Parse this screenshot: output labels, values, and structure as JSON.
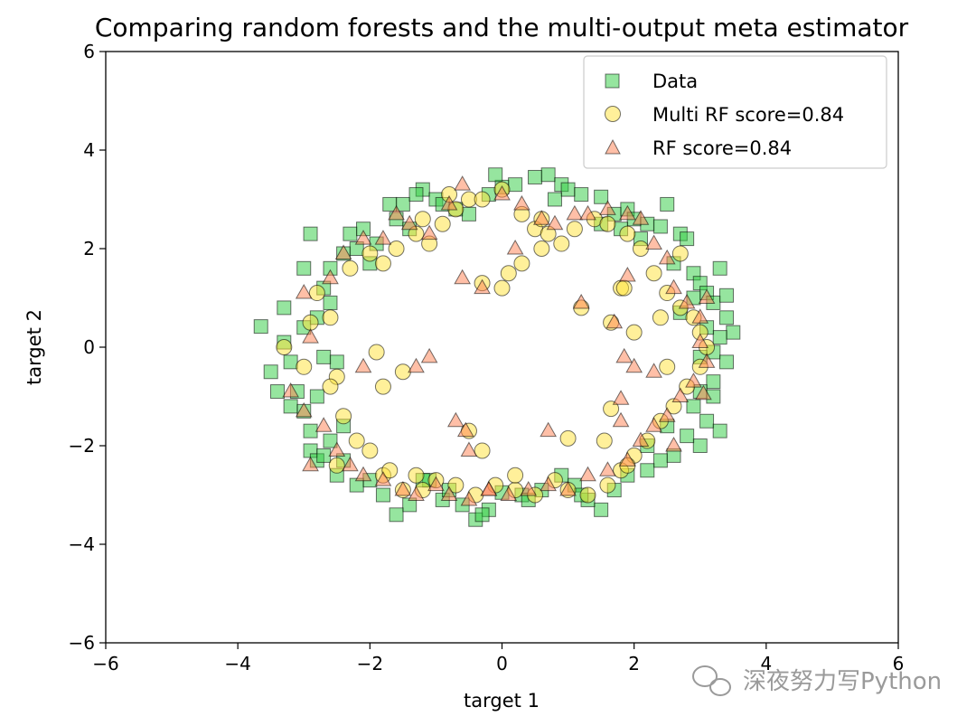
{
  "chart_data": {
    "type": "scatter",
    "title": "Comparing random forests and the multi-output meta estimator",
    "xlabel": "target 1",
    "ylabel": "target 2",
    "xlim": [
      -6,
      6
    ],
    "ylim": [
      -6,
      6
    ],
    "xticks": [
      "−6",
      "−4",
      "−2",
      "0",
      "2",
      "4",
      "6"
    ],
    "yticks": [
      "−6",
      "−4",
      "−2",
      "0",
      "2",
      "4",
      "6"
    ],
    "grid": false,
    "legend_position": "top-right",
    "series": [
      {
        "name": "Data",
        "marker": "square",
        "color": "#2ecc40",
        "points": [
          [
            -3.65,
            0.42
          ],
          [
            -3.5,
            -0.5
          ],
          [
            -3.3,
            0.1
          ],
          [
            -3.2,
            -0.3
          ],
          [
            -3.1,
            -0.9
          ],
          [
            -3.0,
            -1.3
          ],
          [
            -2.9,
            -2.1
          ],
          [
            -2.8,
            -2.3
          ],
          [
            -2.6,
            -1.9
          ],
          [
            -2.4,
            -1.6
          ],
          [
            -3.0,
            1.6
          ],
          [
            -2.9,
            2.3
          ],
          [
            -2.7,
            1.2
          ],
          [
            -2.6,
            1.6
          ],
          [
            -2.4,
            1.9
          ],
          [
            -2.3,
            2.3
          ],
          [
            -2.1,
            2.4
          ],
          [
            -1.9,
            2.1
          ],
          [
            -1.6,
            2.6
          ],
          [
            -1.5,
            2.9
          ],
          [
            -1.2,
            3.2
          ],
          [
            -1.3,
            3.1
          ],
          [
            -1.0,
            3.0
          ],
          [
            -0.7,
            2.8
          ],
          [
            -0.5,
            2.7
          ],
          [
            -0.2,
            3.1
          ],
          [
            0.0,
            3.25
          ],
          [
            -0.1,
            3.5
          ],
          [
            0.2,
            3.3
          ],
          [
            0.5,
            3.45
          ],
          [
            0.7,
            3.5
          ],
          [
            0.9,
            3.3
          ],
          [
            1.0,
            3.2
          ],
          [
            1.2,
            3.1
          ],
          [
            1.5,
            3.05
          ],
          [
            1.7,
            2.7
          ],
          [
            1.9,
            2.8
          ],
          [
            2.0,
            2.6
          ],
          [
            2.2,
            2.5
          ],
          [
            2.4,
            2.45
          ],
          [
            2.5,
            2.9
          ],
          [
            2.7,
            2.3
          ],
          [
            2.8,
            2.2
          ],
          [
            2.6,
            1.7
          ],
          [
            2.9,
            1.5
          ],
          [
            3.0,
            1.3
          ],
          [
            3.1,
            1.1
          ],
          [
            3.2,
            0.9
          ],
          [
            3.3,
            1.6
          ],
          [
            3.4,
            1.05
          ],
          [
            3.4,
            0.6
          ],
          [
            3.5,
            0.3
          ],
          [
            3.3,
            0.2
          ],
          [
            3.2,
            -0.1
          ],
          [
            3.4,
            -0.3
          ],
          [
            3.2,
            -0.7
          ],
          [
            3.0,
            -0.9
          ],
          [
            2.9,
            -1.2
          ],
          [
            3.1,
            -1.5
          ],
          [
            3.3,
            -1.7
          ],
          [
            3.0,
            -2.0
          ],
          [
            2.8,
            -1.8
          ],
          [
            2.6,
            -2.2
          ],
          [
            2.4,
            -2.3
          ],
          [
            2.2,
            -2.5
          ],
          [
            1.9,
            -2.6
          ],
          [
            1.7,
            -2.9
          ],
          [
            1.5,
            -3.3
          ],
          [
            1.3,
            -3.1
          ],
          [
            1.1,
            -2.8
          ],
          [
            0.9,
            -2.6
          ],
          [
            0.6,
            -2.9
          ],
          [
            0.3,
            -3.0
          ],
          [
            0.0,
            -2.95
          ],
          [
            -0.2,
            -3.3
          ],
          [
            -0.4,
            -3.5
          ],
          [
            -0.6,
            -3.2
          ],
          [
            -0.9,
            -3.1
          ],
          [
            -1.1,
            -2.7
          ],
          [
            -1.4,
            -3.2
          ],
          [
            -1.6,
            -3.4
          ],
          [
            -1.8,
            -3.0
          ],
          [
            -2.0,
            -2.7
          ],
          [
            -2.2,
            -2.8
          ],
          [
            -2.4,
            -2.3
          ],
          [
            -2.7,
            -2.2
          ],
          [
            -2.9,
            -1.7
          ],
          [
            -3.2,
            -1.2
          ],
          [
            -3.4,
            -0.9
          ],
          [
            -3.0,
            0.4
          ],
          [
            -2.8,
            0.6
          ],
          [
            -2.6,
            0.9
          ],
          [
            -2.5,
            -0.3
          ],
          [
            -2.7,
            -0.2
          ],
          [
            -1.2,
            -2.7
          ],
          [
            -0.8,
            -2.9
          ],
          [
            0.4,
            -3.1
          ],
          [
            1.2,
            -3.0
          ],
          [
            3.0,
            -0.2
          ],
          [
            3.1,
            0.4
          ],
          [
            2.7,
            0.7
          ],
          [
            -2.2,
            2.0
          ],
          [
            -2.0,
            1.7
          ],
          [
            -1.4,
            2.4
          ],
          [
            -0.9,
            2.9
          ],
          [
            0.8,
            3.0
          ],
          [
            1.5,
            2.5
          ],
          [
            2.1,
            2.2
          ],
          [
            2.9,
            1.0
          ],
          [
            3.2,
            -1.0
          ],
          [
            2.2,
            -2.0
          ],
          [
            -0.3,
            -3.4
          ],
          [
            -2.5,
            -2.6
          ],
          [
            -3.3,
            0.8
          ],
          [
            -1.7,
            2.9
          ],
          [
            1.8,
            2.4
          ],
          [
            -2.8,
            -1.0
          ],
          [
            2.5,
            -1.6
          ]
        ]
      },
      {
        "name": "Multi RF score=0.84",
        "marker": "circle",
        "color": "#ffe135",
        "points": [
          [
            -3.3,
            0.0
          ],
          [
            -3.0,
            -0.4
          ],
          [
            -2.9,
            0.5
          ],
          [
            -2.8,
            1.1
          ],
          [
            -2.6,
            0.6
          ],
          [
            -2.5,
            -0.6
          ],
          [
            -2.4,
            -1.4
          ],
          [
            -2.2,
            -1.9
          ],
          [
            -2.0,
            -2.1
          ],
          [
            -1.8,
            -2.6
          ],
          [
            -1.7,
            -2.5
          ],
          [
            -1.5,
            -2.9
          ],
          [
            -2.3,
            1.6
          ],
          [
            -2.0,
            1.9
          ],
          [
            -1.8,
            1.7
          ],
          [
            -1.6,
            2.0
          ],
          [
            -1.3,
            2.3
          ],
          [
            -1.1,
            2.1
          ],
          [
            -0.9,
            2.5
          ],
          [
            -0.7,
            2.8
          ],
          [
            -0.5,
            3.0
          ],
          [
            -0.3,
            3.0
          ],
          [
            0.0,
            3.2
          ],
          [
            0.3,
            2.7
          ],
          [
            0.5,
            2.4
          ],
          [
            0.7,
            2.3
          ],
          [
            0.9,
            2.1
          ],
          [
            1.1,
            2.4
          ],
          [
            1.4,
            2.6
          ],
          [
            1.6,
            2.5
          ],
          [
            1.9,
            2.3
          ],
          [
            2.1,
            2.0
          ],
          [
            2.3,
            1.5
          ],
          [
            2.5,
            1.1
          ],
          [
            2.7,
            0.8
          ],
          [
            2.9,
            0.6
          ],
          [
            3.0,
            0.3
          ],
          [
            3.1,
            0.0
          ],
          [
            3.0,
            -0.4
          ],
          [
            2.8,
            -0.8
          ],
          [
            2.6,
            -1.2
          ],
          [
            2.4,
            -1.5
          ],
          [
            2.2,
            -1.9
          ],
          [
            2.0,
            -2.2
          ],
          [
            1.8,
            -2.5
          ],
          [
            1.6,
            -2.8
          ],
          [
            1.3,
            -3.0
          ],
          [
            1.0,
            -2.9
          ],
          [
            0.8,
            -2.7
          ],
          [
            0.5,
            -3.0
          ],
          [
            0.2,
            -2.9
          ],
          [
            -0.1,
            -2.8
          ],
          [
            -0.4,
            -3.0
          ],
          [
            -0.7,
            -2.8
          ],
          [
            -1.0,
            -2.7
          ],
          [
            -1.2,
            -2.9
          ],
          [
            -0.3,
            1.3
          ],
          [
            0.0,
            1.2
          ],
          [
            0.1,
            1.5
          ],
          [
            0.3,
            1.7
          ],
          [
            0.6,
            2.0
          ],
          [
            -1.9,
            -0.1
          ],
          [
            -1.8,
            -0.8
          ],
          [
            -1.5,
            -0.5
          ],
          [
            1.2,
            0.8
          ],
          [
            1.65,
            0.5
          ],
          [
            1.8,
            1.2
          ],
          [
            2.0,
            0.3
          ],
          [
            2.4,
            0.6
          ],
          [
            2.5,
            -0.4
          ],
          [
            1.55,
            -1.9
          ],
          [
            1.0,
            -1.85
          ],
          [
            0.2,
            -2.6
          ],
          [
            -0.5,
            -1.7
          ],
          [
            -0.3,
            -2.1
          ],
          [
            -1.2,
            2.6
          ],
          [
            -2.5,
            -2.4
          ],
          [
            -2.6,
            -0.8
          ],
          [
            2.7,
            1.9
          ],
          [
            -0.8,
            3.1
          ],
          [
            0.6,
            2.6
          ],
          [
            1.9,
            -2.4
          ],
          [
            -1.3,
            -2.6
          ],
          [
            1.65,
            -1.25
          ],
          [
            1.85,
            1.2
          ]
        ]
      },
      {
        "name": "RF score=0.84",
        "marker": "triangle",
        "color": "#ff7f50",
        "points": [
          [
            -3.0,
            1.1
          ],
          [
            -2.9,
            0.2
          ],
          [
            -3.2,
            -0.9
          ],
          [
            -3.0,
            -1.3
          ],
          [
            -2.7,
            -1.6
          ],
          [
            -2.5,
            -2.1
          ],
          [
            -2.3,
            -2.4
          ],
          [
            -2.1,
            -2.6
          ],
          [
            -1.8,
            -2.7
          ],
          [
            -1.5,
            -2.9
          ],
          [
            -1.3,
            -3.0
          ],
          [
            -2.6,
            1.4
          ],
          [
            -2.4,
            1.9
          ],
          [
            -2.1,
            2.2
          ],
          [
            -1.8,
            2.2
          ],
          [
            -1.6,
            2.7
          ],
          [
            -1.4,
            2.5
          ],
          [
            -1.1,
            2.3
          ],
          [
            -0.8,
            2.9
          ],
          [
            -0.6,
            3.3
          ],
          [
            0.0,
            3.1
          ],
          [
            0.3,
            2.9
          ],
          [
            0.6,
            2.6
          ],
          [
            0.8,
            2.5
          ],
          [
            1.1,
            2.7
          ],
          [
            1.3,
            2.7
          ],
          [
            1.6,
            2.8
          ],
          [
            1.9,
            2.7
          ],
          [
            2.1,
            2.6
          ],
          [
            2.3,
            2.1
          ],
          [
            2.5,
            1.8
          ],
          [
            2.6,
            1.2
          ],
          [
            2.8,
            0.9
          ],
          [
            3.0,
            0.6
          ],
          [
            3.1,
            1.0
          ],
          [
            3.0,
            0.1
          ],
          [
            3.1,
            -0.3
          ],
          [
            2.9,
            -0.7
          ],
          [
            2.7,
            -1.0
          ],
          [
            2.5,
            -1.4
          ],
          [
            2.3,
            -1.6
          ],
          [
            2.1,
            -1.9
          ],
          [
            1.9,
            -2.3
          ],
          [
            1.6,
            -2.5
          ],
          [
            1.3,
            -2.6
          ],
          [
            1.0,
            -2.9
          ],
          [
            0.7,
            -2.8
          ],
          [
            0.4,
            -2.9
          ],
          [
            0.1,
            -3.0
          ],
          [
            -0.2,
            -2.9
          ],
          [
            -0.5,
            -3.1
          ],
          [
            -0.8,
            -3.0
          ],
          [
            -1.0,
            -2.8
          ],
          [
            -0.6,
            1.4
          ],
          [
            -0.3,
            1.2
          ],
          [
            0.2,
            2.0
          ],
          [
            -2.1,
            -0.4
          ],
          [
            -1.3,
            -0.4
          ],
          [
            -1.1,
            -0.2
          ],
          [
            1.2,
            0.9
          ],
          [
            1.7,
            0.5
          ],
          [
            1.9,
            1.45
          ],
          [
            1.8,
            -1.5
          ],
          [
            1.8,
            -1.05
          ],
          [
            2.3,
            -0.5
          ],
          [
            1.85,
            -0.2
          ],
          [
            0.7,
            -1.7
          ],
          [
            -0.7,
            -1.5
          ],
          [
            -0.55,
            -1.7
          ],
          [
            -0.5,
            -2.1
          ],
          [
            -0.2,
            -2.9
          ],
          [
            2.6,
            -2.0
          ],
          [
            3.05,
            -0.95
          ],
          [
            2.0,
            -0.4
          ],
          [
            -2.9,
            -2.4
          ]
        ]
      }
    ]
  },
  "watermark": "深夜努力写Python"
}
